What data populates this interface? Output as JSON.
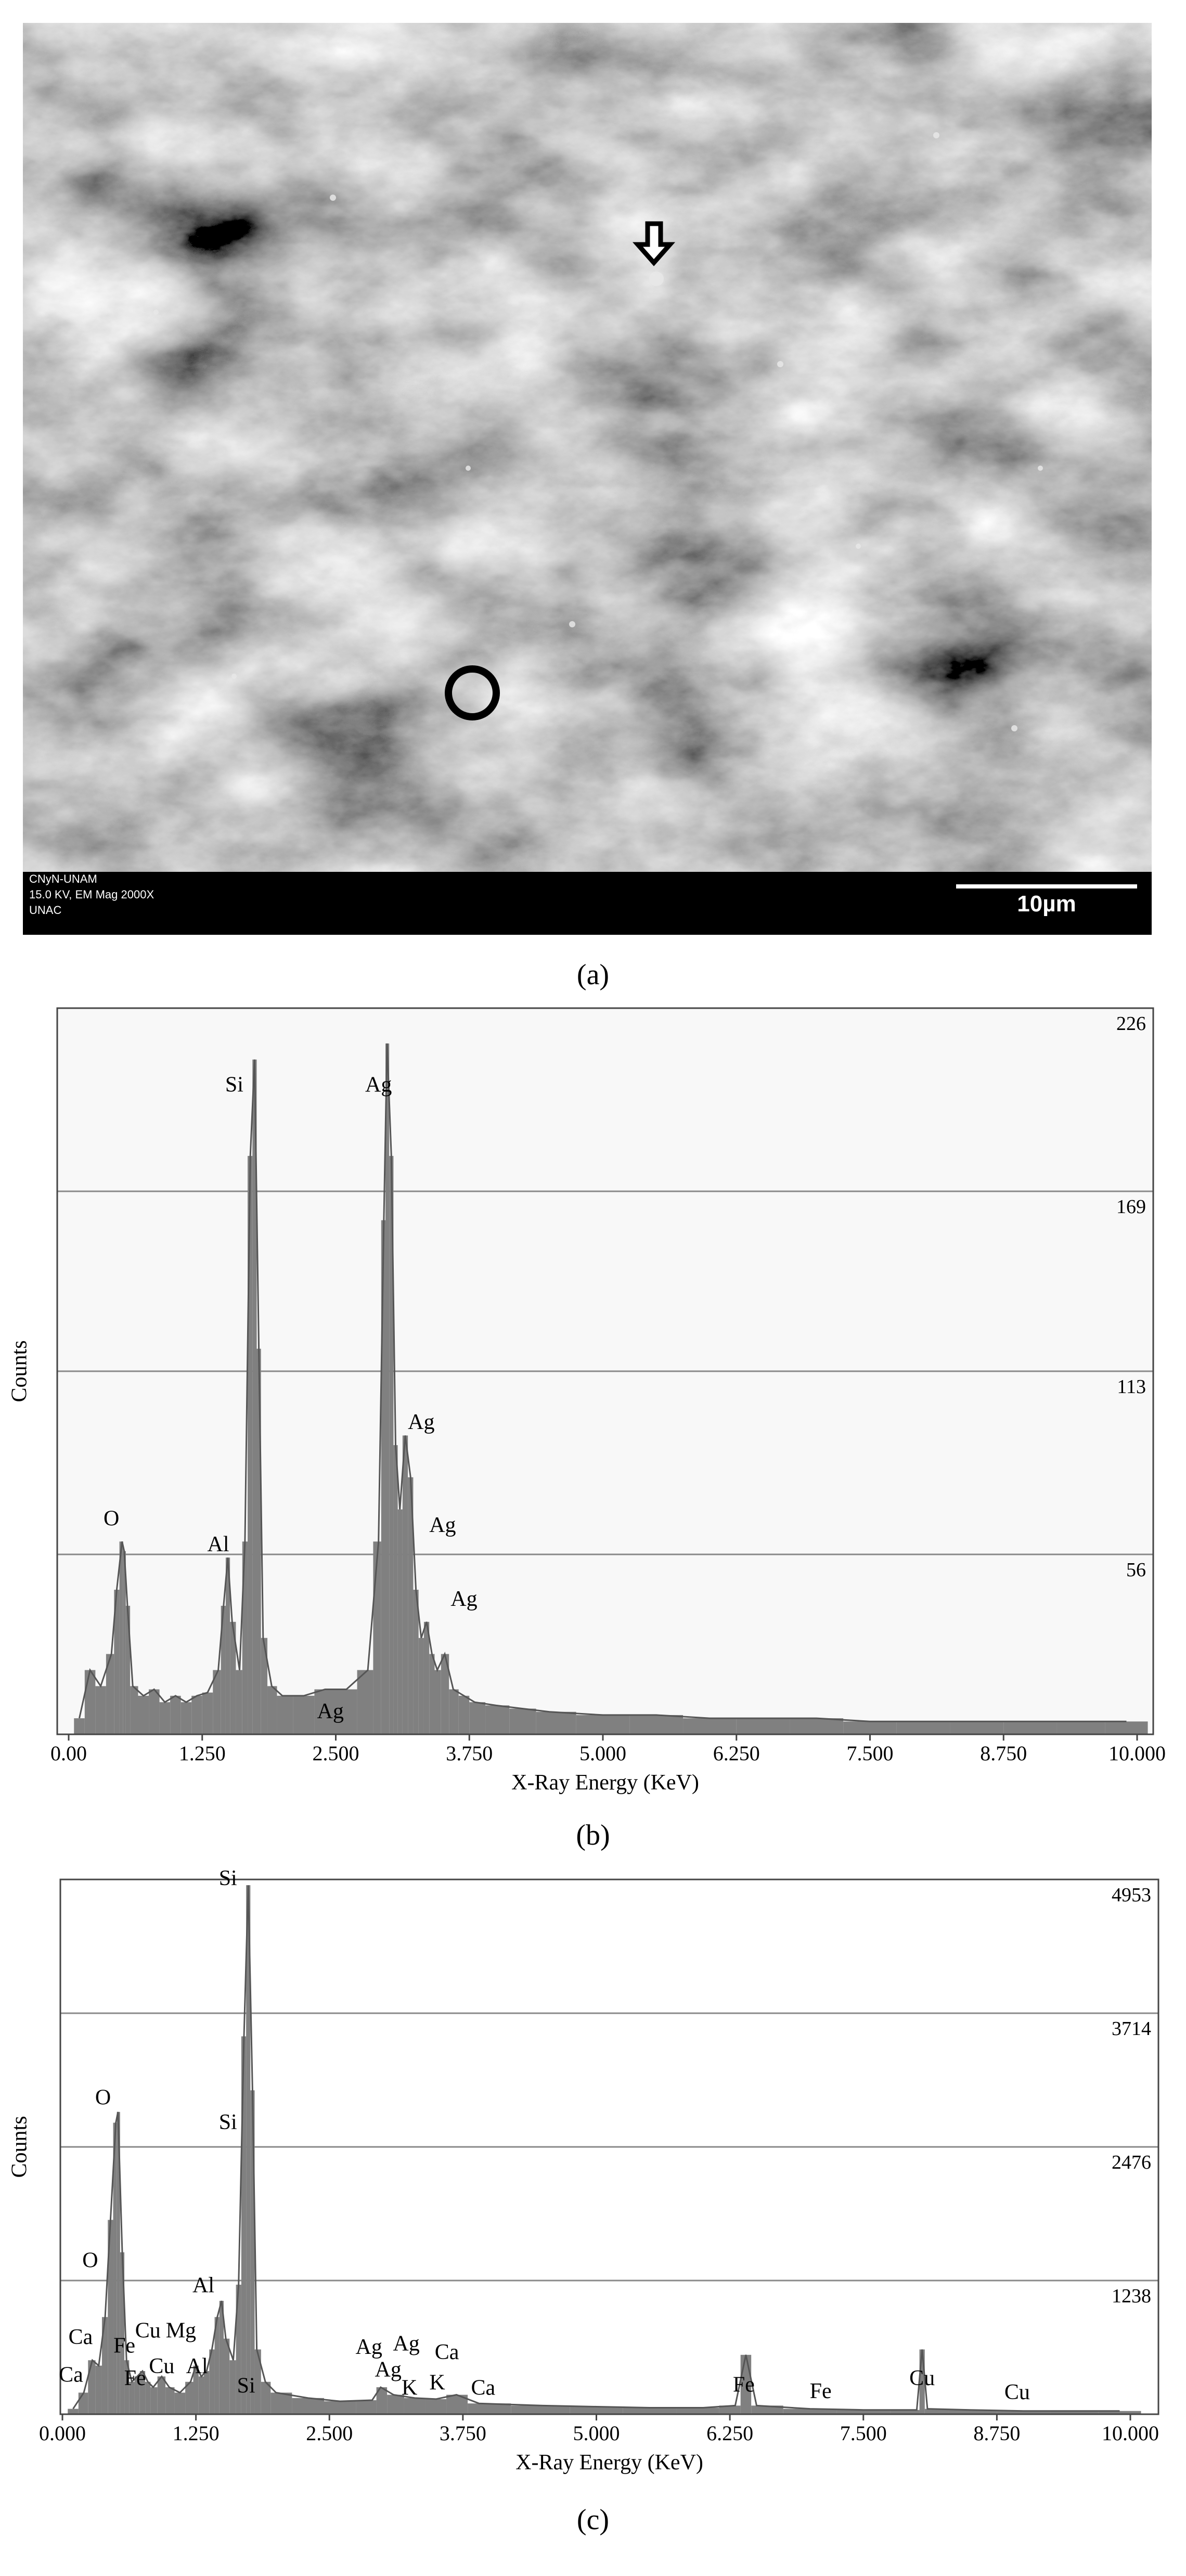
{
  "sem_image": {
    "footer": [
      "CNyN-UNAM",
      "15.0 KV, EM Mag 2000X",
      "UNAC"
    ],
    "scale_bar": "10µm"
  },
  "captions": [
    "(a)",
    "(b)",
    "(c)"
  ],
  "chart_data": [
    {
      "type": "spectrum",
      "x_label": "X-Ray Energy (KeV)",
      "y_label": "Counts",
      "color": "#808080",
      "grid": true,
      "xlim": [
        0,
        10
      ],
      "ylim": [
        0,
        226
      ],
      "xticks": [
        {
          "value": 0,
          "label": "0.00"
        },
        {
          "value": 1.25,
          "label": "1.250"
        },
        {
          "value": 2.5,
          "label": "2.500"
        },
        {
          "value": 3.75,
          "label": "3.750"
        },
        {
          "value": 5,
          "label": "5.000"
        },
        {
          "value": 6.25,
          "label": "6.250"
        },
        {
          "value": 7.5,
          "label": "7.500"
        },
        {
          "value": 8.75,
          "label": "8.750"
        },
        {
          "value": 10,
          "label": "10.000"
        }
      ],
      "yticks": [
        56,
        113,
        169,
        226
      ],
      "x": [
        0.1,
        0.2,
        0.3,
        0.4,
        0.45,
        0.5,
        0.52,
        0.55,
        0.6,
        0.7,
        0.8,
        0.9,
        1.0,
        1.1,
        1.2,
        1.3,
        1.4,
        1.45,
        1.49,
        1.53,
        1.6,
        1.65,
        1.7,
        1.74,
        1.78,
        1.82,
        1.9,
        2.0,
        2.2,
        2.4,
        2.6,
        2.8,
        2.9,
        2.95,
        2.98,
        3.02,
        3.06,
        3.1,
        3.15,
        3.2,
        3.25,
        3.3,
        3.35,
        3.4,
        3.45,
        3.52,
        3.6,
        3.7,
        3.8,
        4.0,
        4.25,
        4.5,
        5.0,
        5.5,
        6.0,
        6.5,
        7.0,
        7.5,
        8.0,
        8.5,
        9.0,
        9.5,
        9.9
      ],
      "values": [
        5,
        20,
        15,
        25,
        45,
        60,
        57,
        40,
        15,
        12,
        14,
        10,
        12,
        10,
        12,
        13,
        20,
        40,
        55,
        35,
        20,
        60,
        180,
        210,
        120,
        30,
        15,
        12,
        12,
        14,
        14,
        20,
        60,
        160,
        215,
        180,
        90,
        70,
        93,
        80,
        45,
        30,
        35,
        25,
        20,
        25,
        14,
        12,
        10,
        9,
        8,
        7,
        6,
        6,
        5,
        5,
        5,
        4,
        4,
        4,
        4,
        4,
        4
      ],
      "annotations": [
        {
          "text": "O",
          "x": 0.4,
          "y": 65
        },
        {
          "text": "Al",
          "x": 1.4,
          "y": 57
        },
        {
          "text": "Si",
          "x": 1.55,
          "y": 200
        },
        {
          "text": "Ag",
          "x": 2.9,
          "y": 200
        },
        {
          "text": "Ag",
          "x": 3.3,
          "y": 95
        },
        {
          "text": "Ag",
          "x": 3.5,
          "y": 63
        },
        {
          "text": "Ag",
          "x": 3.7,
          "y": 40
        },
        {
          "text": "Ag",
          "x": 2.45,
          "y": 5
        }
      ]
    },
    {
      "type": "spectrum",
      "x_label": "X-Ray Energy (KeV)",
      "y_label": "Counts",
      "color": "#808080",
      "grid": true,
      "xlim": [
        0,
        10
      ],
      "ylim": [
        0,
        4953
      ],
      "xticks": [
        {
          "value": 0,
          "label": "0.000"
        },
        {
          "value": 1.25,
          "label": "1.250"
        },
        {
          "value": 2.5,
          "label": "2.500"
        },
        {
          "value": 3.75,
          "label": "3.750"
        },
        {
          "value": 5,
          "label": "5.000"
        },
        {
          "value": 6.25,
          "label": "6.250"
        },
        {
          "value": 7.5,
          "label": "7.500"
        },
        {
          "value": 8.75,
          "label": "8.750"
        },
        {
          "value": 10,
          "label": "10.000"
        }
      ],
      "yticks": [
        1238,
        2476,
        3714,
        4953
      ],
      "x": [
        0.1,
        0.2,
        0.28,
        0.34,
        0.4,
        0.45,
        0.5,
        0.52,
        0.56,
        0.6,
        0.65,
        0.7,
        0.75,
        0.8,
        0.85,
        0.93,
        1.0,
        1.1,
        1.2,
        1.25,
        1.3,
        1.35,
        1.4,
        1.45,
        1.49,
        1.53,
        1.6,
        1.65,
        1.7,
        1.74,
        1.78,
        1.82,
        1.9,
        2.0,
        2.3,
        2.6,
        2.9,
        2.98,
        3.1,
        3.3,
        3.5,
        3.69,
        3.9,
        4.5,
        5.0,
        5.5,
        6.0,
        6.3,
        6.4,
        6.5,
        7.0,
        7.5,
        8.0,
        8.05,
        8.1,
        8.5,
        9.0,
        9.5,
        9.9
      ],
      "values": [
        50,
        200,
        500,
        450,
        900,
        1800,
        2700,
        2800,
        1500,
        500,
        300,
        350,
        400,
        300,
        250,
        350,
        250,
        200,
        300,
        450,
        350,
        400,
        600,
        900,
        1050,
        700,
        500,
        1200,
        3500,
        4900,
        3000,
        600,
        300,
        200,
        150,
        120,
        130,
        250,
        180,
        150,
        140,
        180,
        100,
        80,
        70,
        60,
        60,
        80,
        550,
        80,
        50,
        40,
        40,
        600,
        50,
        40,
        30,
        30,
        30
      ],
      "annotations": [
        {
          "text": "Si",
          "x": 1.55,
          "y": 4900
        },
        {
          "text": "O",
          "x": 0.38,
          "y": 2870
        },
        {
          "text": "Si",
          "x": 1.55,
          "y": 2640
        },
        {
          "text": "O",
          "x": 0.26,
          "y": 1360
        },
        {
          "text": "Al",
          "x": 1.32,
          "y": 1130
        },
        {
          "text": "Ca",
          "x": 0.17,
          "y": 650
        },
        {
          "text": "Fe",
          "x": 0.58,
          "y": 570
        },
        {
          "text": "Cu",
          "x": 0.8,
          "y": 710
        },
        {
          "text": "Mg",
          "x": 1.11,
          "y": 710
        },
        {
          "text": "Cu",
          "x": 0.93,
          "y": 380
        },
        {
          "text": "Al",
          "x": 1.26,
          "y": 380
        },
        {
          "text": "Ca",
          "x": 0.08,
          "y": 300
        },
        {
          "text": "Fe",
          "x": 0.68,
          "y": 270
        },
        {
          "text": "Si",
          "x": 1.72,
          "y": 200
        },
        {
          "text": "Ag",
          "x": 2.87,
          "y": 560
        },
        {
          "text": "Ag",
          "x": 3.05,
          "y": 350
        },
        {
          "text": "Ag",
          "x": 3.22,
          "y": 590
        },
        {
          "text": "K",
          "x": 3.25,
          "y": 180
        },
        {
          "text": "Ca",
          "x": 3.6,
          "y": 510
        },
        {
          "text": "K",
          "x": 3.51,
          "y": 230
        },
        {
          "text": "Ca",
          "x": 3.94,
          "y": 180
        },
        {
          "text": "Fe",
          "x": 6.38,
          "y": 210
        },
        {
          "text": "Fe",
          "x": 7.1,
          "y": 150
        },
        {
          "text": "Cu",
          "x": 8.05,
          "y": 270
        },
        {
          "text": "Cu",
          "x": 8.94,
          "y": 140
        }
      ]
    }
  ]
}
